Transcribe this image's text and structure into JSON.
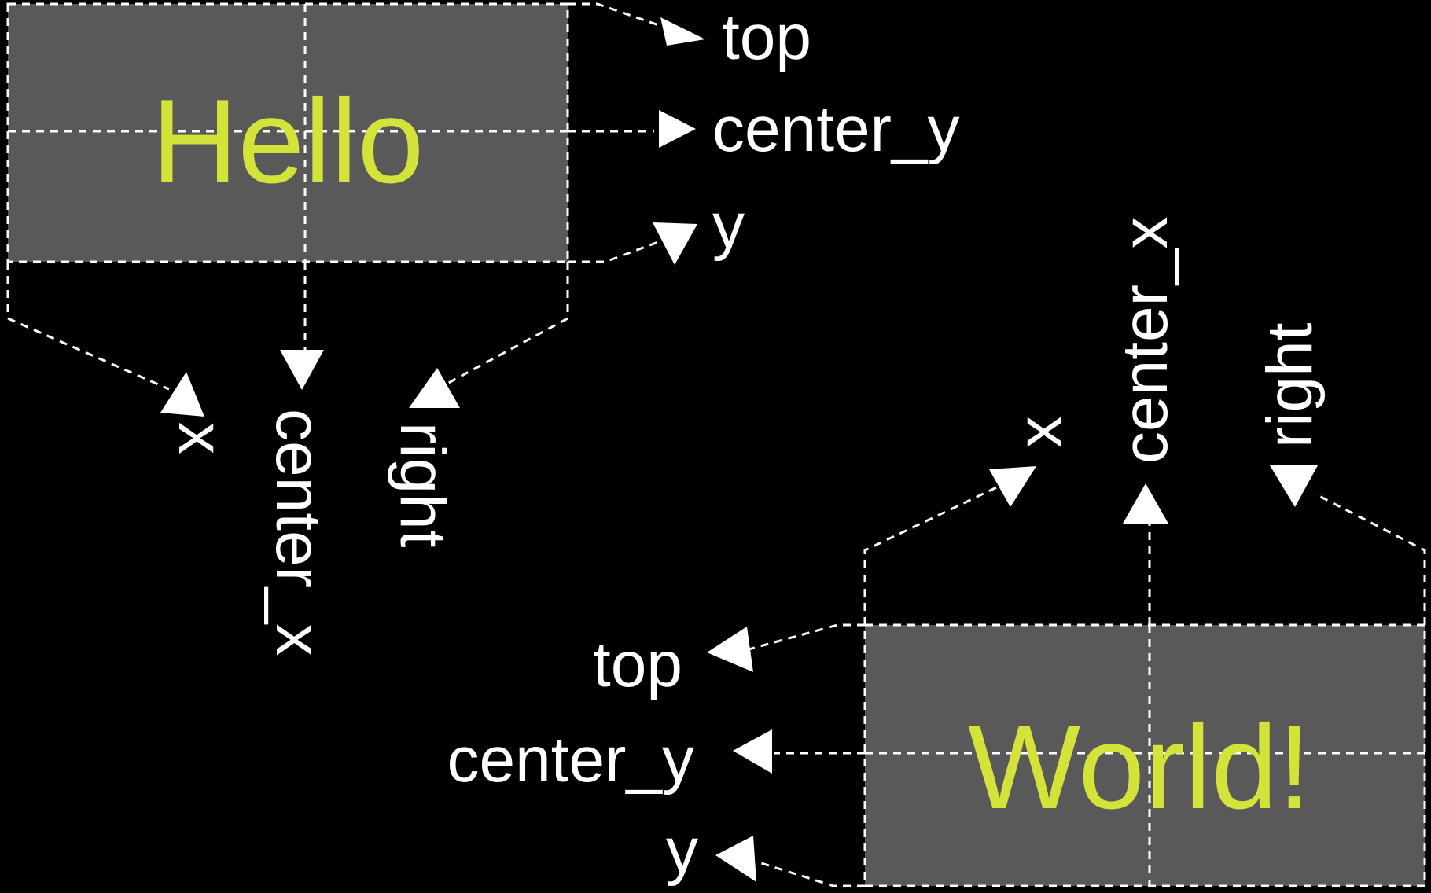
{
  "colors": {
    "background": "#000000",
    "box_fill": "#595959",
    "word_color": "#d4e33a",
    "line_color": "#ffffff",
    "label_color": "#ffffff"
  },
  "hello": {
    "word": "Hello",
    "labels": {
      "top": "top",
      "center_y": "center_y",
      "y": "y",
      "x": "x",
      "center_x": "center_x",
      "right": "right"
    }
  },
  "world": {
    "word": "World!",
    "labels": {
      "top": "top",
      "center_y": "center_y",
      "y": "y",
      "x": "x",
      "center_x": "center_x",
      "right": "right"
    }
  }
}
